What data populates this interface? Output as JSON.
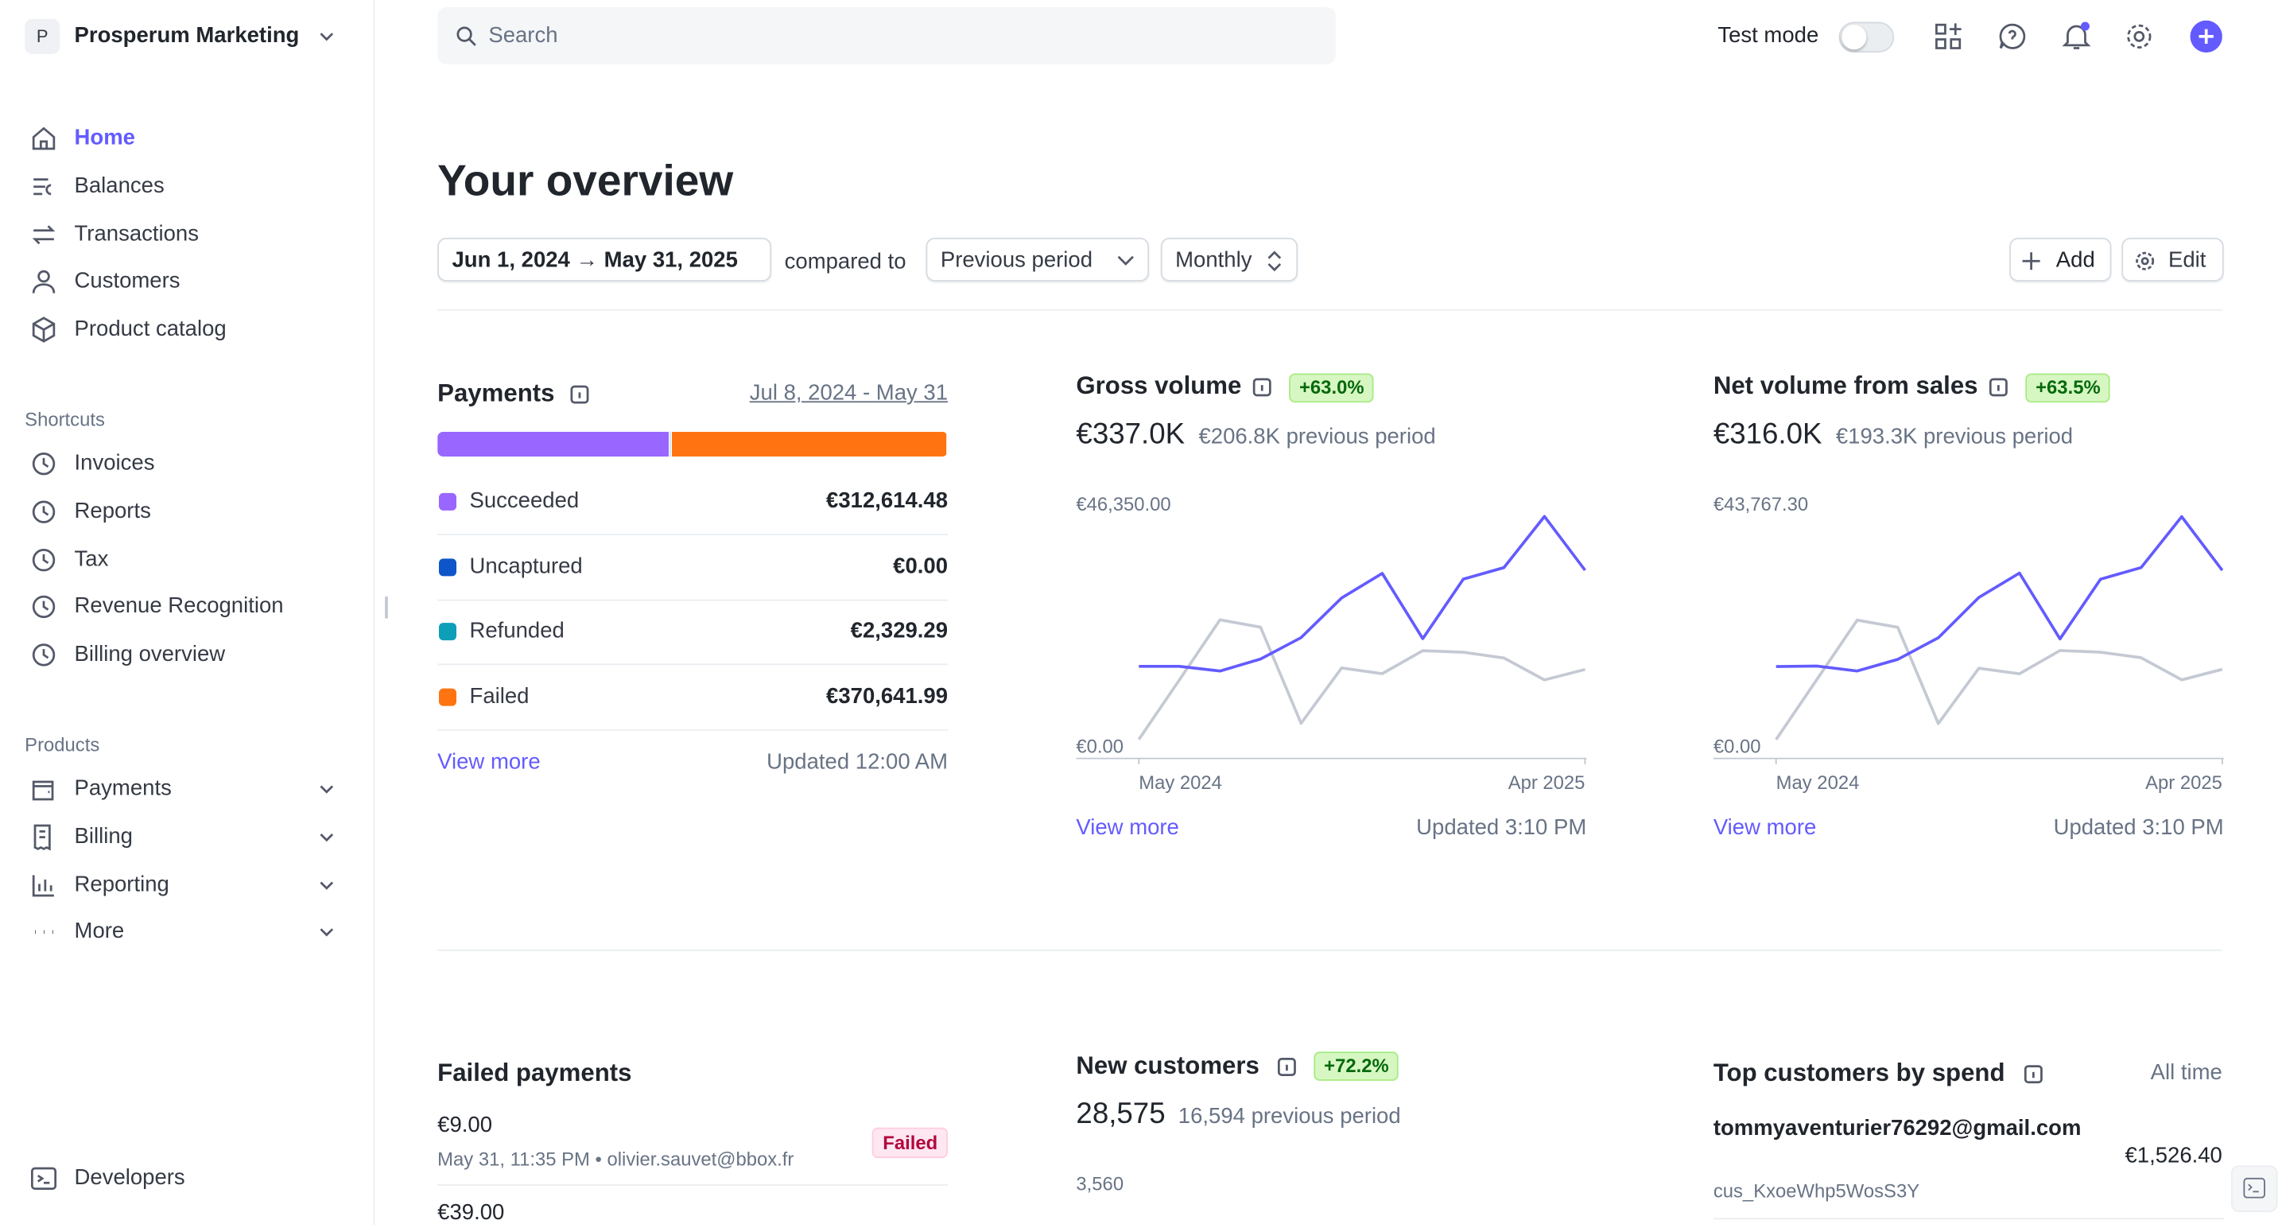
{
  "workspace": "Prosperum Marketing",
  "workspace_initial": "P",
  "nav": [
    "Home",
    "Balances",
    "Transactions",
    "Customers",
    "Product catalog"
  ],
  "shortcuts_title": "Shortcuts",
  "shortcuts": [
    "Invoices",
    "Reports",
    "Tax",
    "Revenue Recognition",
    "Billing overview"
  ],
  "products_title": "Products",
  "products": [
    "Payments",
    "Billing",
    "Reporting",
    "More"
  ],
  "developers": "Developers",
  "search_placeholder": "Search",
  "test_mode": "Test mode",
  "title": "Your overview",
  "filters": {
    "date_start": "Jun 1, 2024",
    "date_end": "May 31, 2025",
    "compared_to": "compared to",
    "comparison": "Previous period",
    "interval": "Monthly",
    "add": "Add",
    "edit": "Edit"
  },
  "payments": {
    "title": "Payments",
    "range": "Jul 8, 2024 - May 31",
    "rows": [
      {
        "name": "Succeeded",
        "value": 312614.48,
        "label": "€312,614.48",
        "color": "#9966ff"
      },
      {
        "name": "Uncaptured",
        "value": 0,
        "label": "€0.00",
        "color": "#0d55c8"
      },
      {
        "name": "Refunded",
        "value": 2329.29,
        "label": "€2,329.29",
        "color": "#0e9fb8"
      },
      {
        "name": "Failed",
        "value": 370641.99,
        "label": "€370,641.99",
        "color": "#ff7410"
      }
    ],
    "view_more": "View more",
    "updated": "Updated 12:00 AM"
  },
  "gross": {
    "title": "Gross volume",
    "badge": "+63.0%",
    "total": "€337.0K",
    "previous": "€206.8K previous period",
    "ylim": [
      0,
      46350
    ],
    "yticks": [
      {
        "value": 0,
        "label": "€0.00"
      },
      {
        "value": 46350,
        "label": "€46,350.00"
      }
    ],
    "categories": [
      "May 2024",
      null,
      null,
      null,
      null,
      null,
      null,
      null,
      null,
      null,
      null,
      "Apr 2025"
    ],
    "series": [
      {
        "color": "#635bff",
        "values": [
          15400,
          15400,
          14500,
          16800,
          20900,
          28500,
          33200,
          20700,
          32100,
          34300,
          44100,
          33800
        ]
      },
      {
        "color": "#c4c9d3",
        "values": [
          1400,
          12800,
          24300,
          22900,
          4500,
          15100,
          14000,
          18400,
          18100,
          17000,
          12800,
          14800
        ]
      }
    ],
    "view_more": "View more",
    "updated": "Updated 3:10 PM"
  },
  "net": {
    "title": "Net volume from sales",
    "badge": "+63.5%",
    "total": "€316.0K",
    "previous": "€193.3K previous period",
    "ylim": [
      0,
      43767.3
    ],
    "yticks": [
      {
        "value": 0,
        "label": "€0.00"
      },
      {
        "value": 43767.3,
        "label": "€43,767.30"
      }
    ],
    "categories": [
      "May 2024",
      null,
      null,
      null,
      null,
      null,
      null,
      null,
      null,
      null,
      null,
      "Apr 2025"
    ],
    "series": [
      {
        "color": "#635bff",
        "values": [
          14500,
          14600,
          13700,
          15800,
          19700,
          27000,
          31400,
          19500,
          30300,
          32400,
          41600,
          31900
        ]
      },
      {
        "color": "#c4c9d3",
        "values": [
          1300,
          12100,
          22900,
          21600,
          4200,
          14200,
          13200,
          17400,
          17100,
          16100,
          12100,
          14000
        ]
      }
    ],
    "view_more": "View more",
    "updated": "Updated 3:10 PM"
  },
  "failed_payments": {
    "title": "Failed payments",
    "items": [
      {
        "amount": "€9.00",
        "meta": "May 31, 11:35 PM • olivier.sauvet@bbox.fr",
        "status": "Failed"
      },
      {
        "amount": "€39.00"
      }
    ]
  },
  "new_customers": {
    "title": "New customers",
    "badge": "+72.2%",
    "total": "28,575",
    "previous": "16,594 previous period",
    "yticks": [
      {
        "value": 3560,
        "label": "3,560"
      }
    ]
  },
  "top_customers": {
    "title": "Top customers by spend",
    "period": "All time",
    "items": [
      {
        "email": "tommyaventurier76292@gmail.com",
        "id": "cus_KxoeWhp5WosS3Y",
        "amount": "€1,526.40"
      }
    ]
  }
}
